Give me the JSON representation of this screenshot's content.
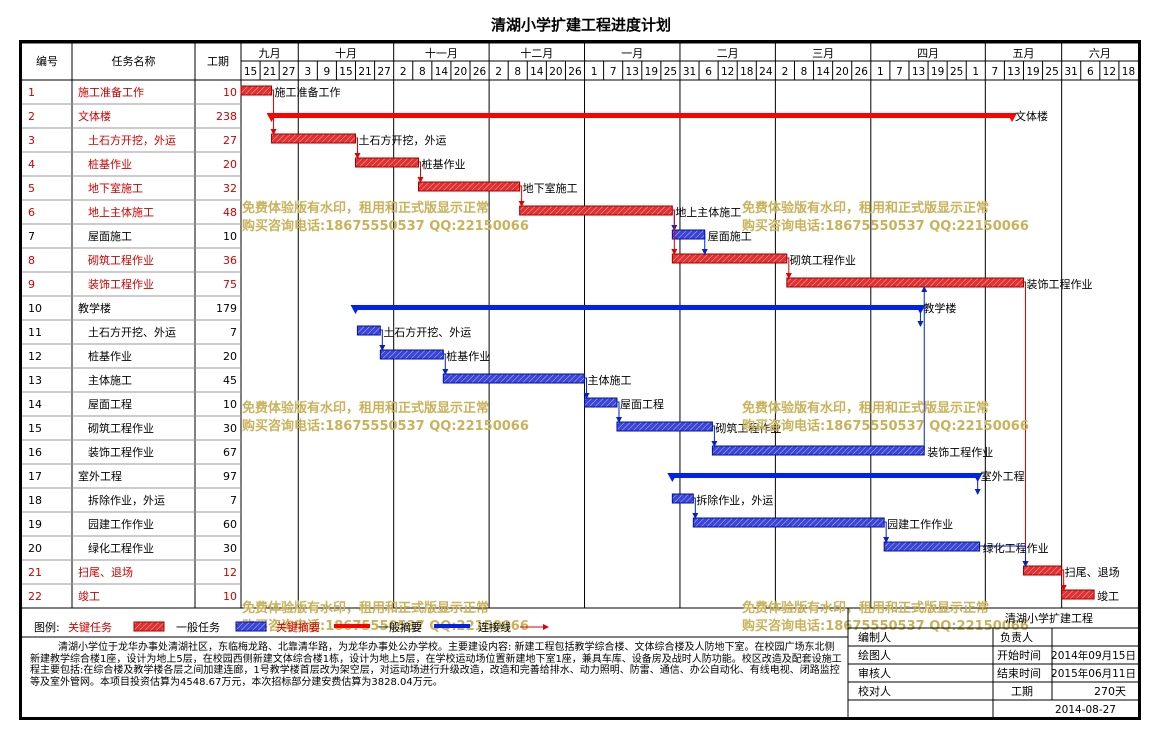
{
  "title": "清湖小学扩建工程进度计划",
  "headers": {
    "no": "编号",
    "name": "任务名称",
    "duration": "工期"
  },
  "months": [
    {
      "label": "九月",
      "start": 0,
      "end": 3
    },
    {
      "label": "十月",
      "start": 3,
      "end": 8
    },
    {
      "label": "十一月",
      "start": 8,
      "end": 13
    },
    {
      "label": "十二月",
      "start": 13,
      "end": 18
    },
    {
      "label": "一月",
      "start": 18,
      "end": 23
    },
    {
      "label": "二月",
      "start": 23,
      "end": 28
    },
    {
      "label": "三月",
      "start": 28,
      "end": 33
    },
    {
      "label": "四月",
      "start": 33,
      "end": 39
    },
    {
      "label": "五月",
      "start": 39,
      "end": 43
    },
    {
      "label": "六月",
      "start": 43,
      "end": 47
    }
  ],
  "days": [
    "15",
    "21",
    "27",
    "3",
    "9",
    "15",
    "21",
    "27",
    "2",
    "8",
    "14",
    "20",
    "26",
    "2",
    "8",
    "14",
    "20",
    "26",
    "1",
    "7",
    "13",
    "19",
    "25",
    "31",
    "6",
    "12",
    "18",
    "24",
    "2",
    "8",
    "14",
    "20",
    "26",
    "1",
    "7",
    "13",
    "19",
    "25",
    "1",
    "7",
    "13",
    "19",
    "25",
    "31",
    "6",
    "12",
    "18"
  ],
  "chart_data": {
    "type": "gantt",
    "title": "清湖小学扩建工程进度计划",
    "tasks": [
      {
        "id": "1",
        "name": "施工准备工作",
        "duration": 10,
        "start": 0,
        "end": 1.6,
        "kind": "critical",
        "summary": false,
        "indent": false,
        "label": "施工准备工作"
      },
      {
        "id": "2",
        "name": "文体楼",
        "duration": 238,
        "start": 1.6,
        "end": 40.4,
        "kind": "critical",
        "summary": true,
        "indent": false,
        "label": "文体楼"
      },
      {
        "id": "3",
        "name": "土石方开挖，外运",
        "duration": 27,
        "start": 1.6,
        "end": 6.0,
        "kind": "critical",
        "summary": false,
        "indent": true,
        "label": "土石方开挖，外运"
      },
      {
        "id": "4",
        "name": "桩基作业",
        "duration": 20,
        "start": 6.0,
        "end": 9.3,
        "kind": "critical",
        "summary": false,
        "indent": true,
        "label": "桩基作业"
      },
      {
        "id": "5",
        "name": "地下室施工",
        "duration": 32,
        "start": 9.3,
        "end": 14.6,
        "kind": "critical",
        "summary": false,
        "indent": true,
        "label": "地下室施工"
      },
      {
        "id": "6",
        "name": "地上主体施工",
        "duration": 48,
        "start": 14.6,
        "end": 22.6,
        "kind": "critical",
        "summary": false,
        "indent": true,
        "label": "地上主体施工"
      },
      {
        "id": "7",
        "name": "屋面施工",
        "duration": 10,
        "start": 22.6,
        "end": 24.3,
        "kind": "normal",
        "summary": false,
        "indent": true,
        "label": "屋面施工"
      },
      {
        "id": "8",
        "name": "砌筑工程作业",
        "duration": 36,
        "start": 22.6,
        "end": 28.6,
        "kind": "critical",
        "summary": false,
        "indent": true,
        "label": "砌筑工程作业"
      },
      {
        "id": "9",
        "name": "装饰工程作业",
        "duration": 75,
        "start": 28.6,
        "end": 41.0,
        "kind": "critical",
        "summary": false,
        "indent": true,
        "label": "装饰工程作业"
      },
      {
        "id": "10",
        "name": "教学楼",
        "duration": 179,
        "start": 6.0,
        "end": 35.6,
        "kind": "normal",
        "summary": true,
        "indent": false,
        "label": "教学楼"
      },
      {
        "id": "11",
        "name": "土石方开挖、外运",
        "duration": 7,
        "start": 6.1,
        "end": 7.3,
        "kind": "normal",
        "summary": false,
        "indent": true,
        "label": "土石方开挖、外运"
      },
      {
        "id": "12",
        "name": "桩基作业",
        "duration": 20,
        "start": 7.3,
        "end": 10.6,
        "kind": "normal",
        "summary": false,
        "indent": true,
        "label": "桩基作业"
      },
      {
        "id": "13",
        "name": "主体施工",
        "duration": 45,
        "start": 10.6,
        "end": 18.0,
        "kind": "normal",
        "summary": false,
        "indent": true,
        "label": "主体施工"
      },
      {
        "id": "14",
        "name": "屋面工程",
        "duration": 10,
        "start": 18.0,
        "end": 19.7,
        "kind": "normal",
        "summary": false,
        "indent": true,
        "label": "屋面工程"
      },
      {
        "id": "15",
        "name": "砌筑工程作业",
        "duration": 30,
        "start": 19.7,
        "end": 24.7,
        "kind": "normal",
        "summary": false,
        "indent": true,
        "label": "砌筑工程作业"
      },
      {
        "id": "16",
        "name": "装饰工程作业",
        "duration": 67,
        "start": 24.7,
        "end": 35.8,
        "kind": "normal",
        "summary": false,
        "indent": true,
        "label": "装饰工程作业"
      },
      {
        "id": "17",
        "name": "室外工程",
        "duration": 97,
        "start": 22.6,
        "end": 38.6,
        "kind": "normal",
        "summary": true,
        "indent": false,
        "label": "室外工程"
      },
      {
        "id": "18",
        "name": "拆除作业，外运",
        "duration": 7,
        "start": 22.6,
        "end": 23.7,
        "kind": "normal",
        "summary": false,
        "indent": true,
        "label": "拆除作业，外运"
      },
      {
        "id": "19",
        "name": "园建工作作业",
        "duration": 60,
        "start": 23.7,
        "end": 33.7,
        "kind": "normal",
        "summary": false,
        "indent": true,
        "label": "园建工作作业"
      },
      {
        "id": "20",
        "name": "绿化工程作业",
        "duration": 30,
        "start": 33.7,
        "end": 38.7,
        "kind": "normal",
        "summary": false,
        "indent": true,
        "label": "绿化工程作业"
      },
      {
        "id": "21",
        "name": "扫尾、退场",
        "duration": 12,
        "start": 41.0,
        "end": 43.0,
        "kind": "critical",
        "summary": false,
        "indent": false,
        "label": "扫尾、退场"
      },
      {
        "id": "22",
        "name": "竣工",
        "duration": 10,
        "start": 43.0,
        "end": 44.7,
        "kind": "critical",
        "summary": false,
        "indent": false,
        "label": "竣工"
      }
    ],
    "links": [
      [
        0,
        2
      ],
      [
        2,
        3
      ],
      [
        3,
        4
      ],
      [
        4,
        5
      ],
      [
        5,
        6
      ],
      [
        5,
        7
      ],
      [
        7,
        8
      ],
      [
        6,
        7
      ],
      [
        8,
        20
      ],
      [
        20,
        21
      ],
      [
        10,
        11
      ],
      [
        11,
        12
      ],
      [
        12,
        13
      ],
      [
        13,
        14
      ],
      [
        14,
        15
      ],
      [
        15,
        8
      ],
      [
        17,
        18
      ],
      [
        18,
        19
      ],
      [
        19,
        20
      ],
      [
        9,
        10
      ],
      [
        16,
        17
      ]
    ]
  },
  "watermark": {
    "line1": "免费体验版有水印，租用和正式版显示正常",
    "line2": "购买咨询电话:18675550537 QQ:22150066"
  },
  "legend": {
    "label": "图例:",
    "critical": "关键任务",
    "normal": "一般任务",
    "critical_summary": "关键摘要",
    "normal_summary": "一般摘要",
    "link": "连接线"
  },
  "description": "清湖小学位于龙华办事处清湖社区，东临梅龙路、北靠清华路，为龙华办事处公办学校。主要建设内容:     新建工程包括教学综合楼、文体综合楼及人防地下室。在校园广场东北侧新建教学综合楼1座，设计为地上5层，在校园西侧新建文体综合楼1栋，设计为地上5层，在学校运动场位置新建地下室1座，兼具车库、设备房及战时人防功能。校区改造及配套设施工程主要包括:在综合楼及教学楼各层之间加建连廊，1号教学楼首层改为架空层，对运动场进行升级改造，改造和完善给排水、动力照明、防雷、通信、办公自动化、有线电视、闭路监控等及室外管网。本项目投资估算为4548.67万元，本次招标部分建安费估算为3828.04万元。",
  "info": {
    "project": "清湖小学扩建工程",
    "editor": "编制人",
    "owner": "负责人",
    "drawer": "绘图人",
    "start_label": "开始时间",
    "start_value": "2014年09月15日",
    "reviewer": "审核人",
    "end_label": "结束时间",
    "end_value": "2015年06月11日",
    "checker": "校对人",
    "duration_label": "工期",
    "duration_value": "270天",
    "date": "2014-08-27"
  },
  "colors": {
    "critical": "#e03030",
    "normal": "#3a45d8",
    "critical_summary": "#ff0000",
    "normal_summary": "#0022ee",
    "link_red": "#e00000",
    "link_blue": "#0022cc",
    "watermark": "#c9b25a",
    "rowtext": "#d00000"
  }
}
